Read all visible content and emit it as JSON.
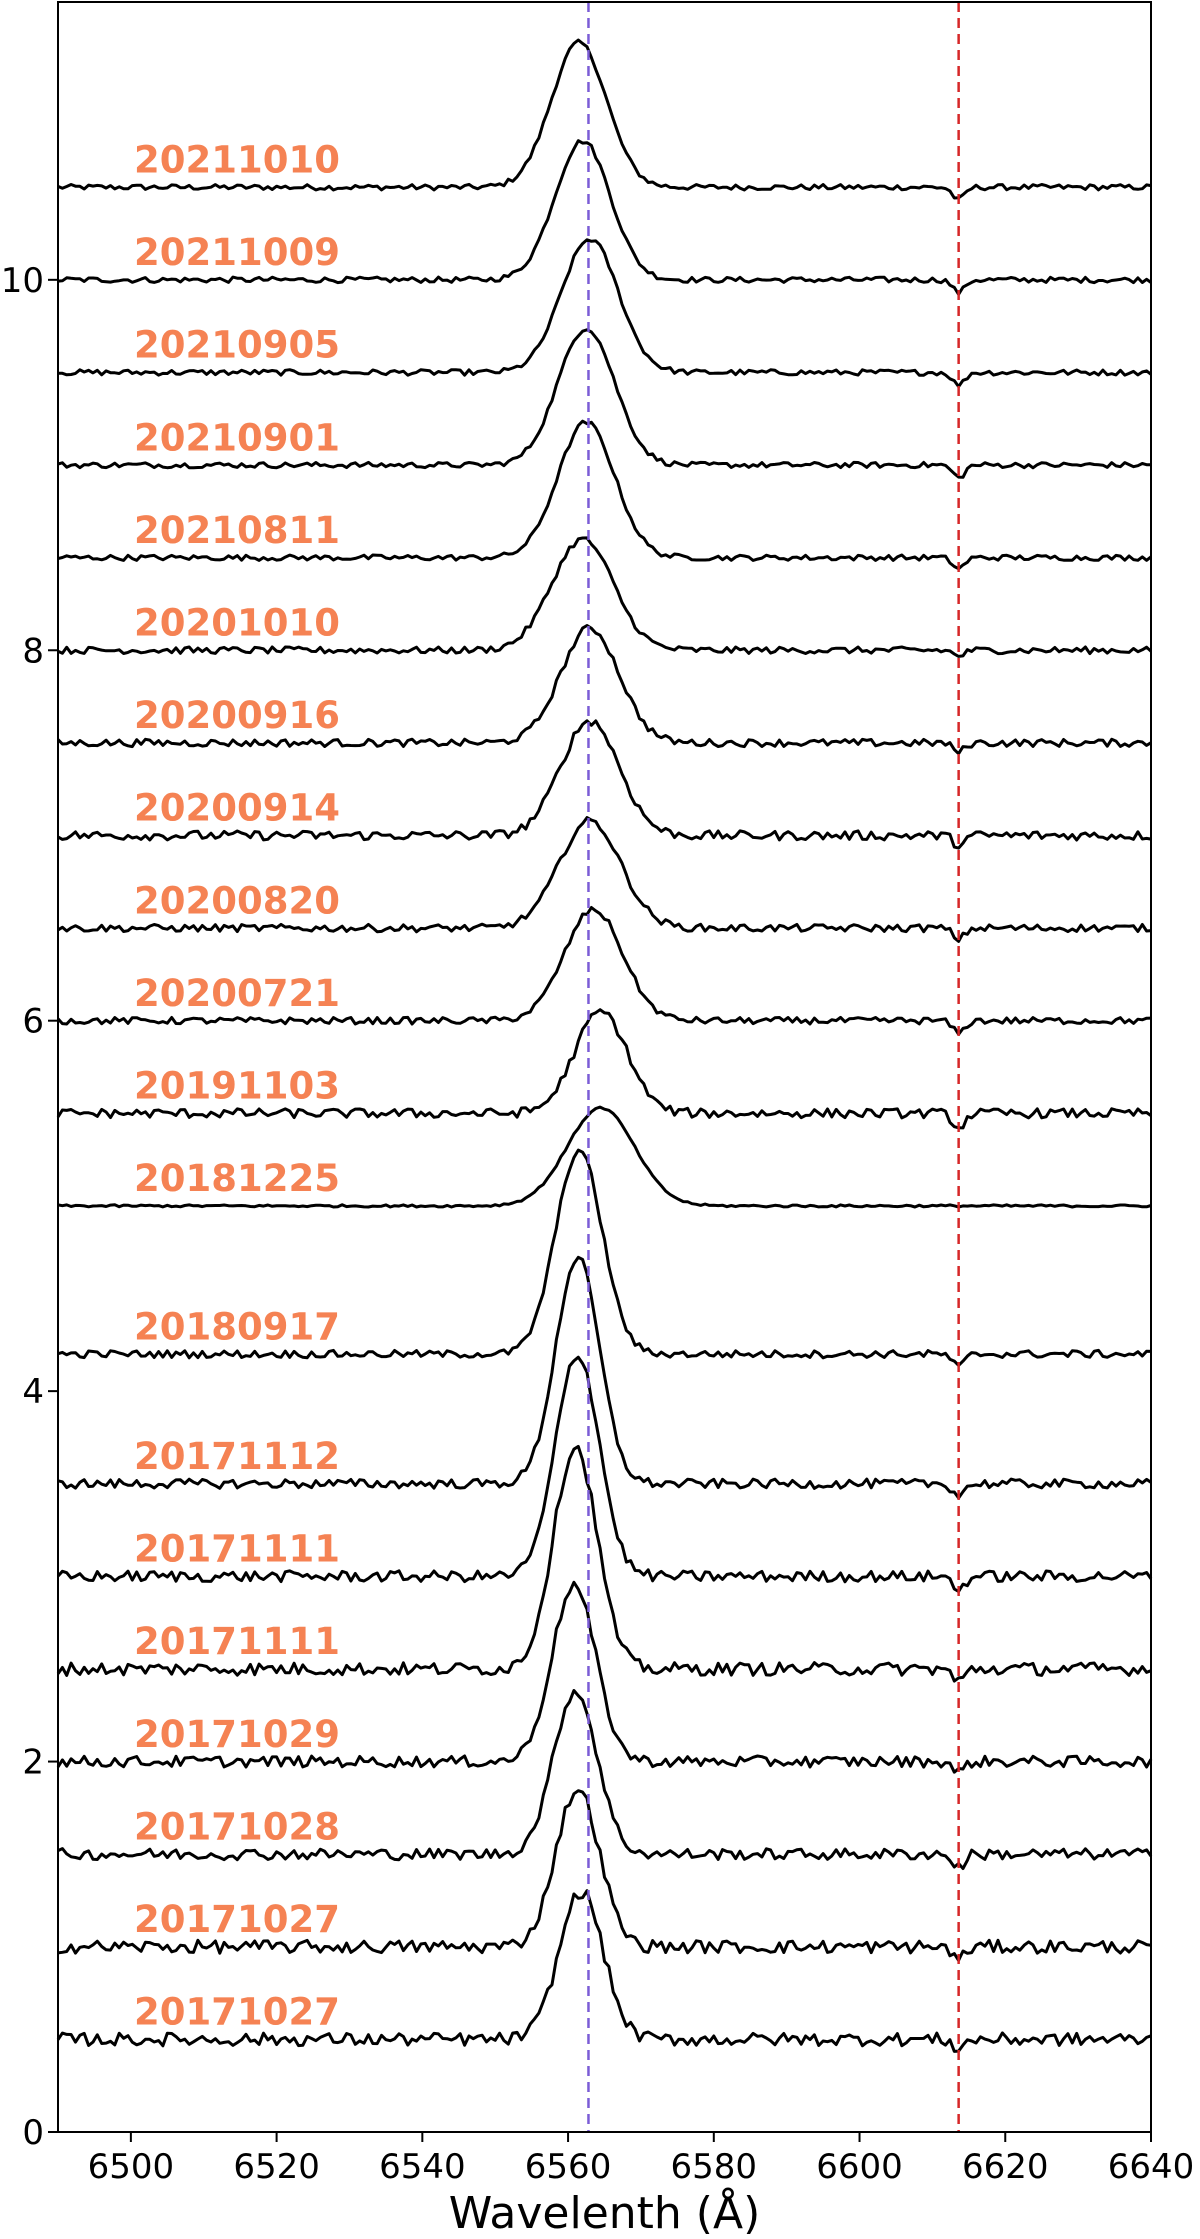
{
  "chart_data": {
    "type": "line",
    "xlabel": "Wavelenth (Å)",
    "ylabel": "",
    "xlim": [
      6490,
      6640
    ],
    "ylim": [
      0,
      11.5
    ],
    "xticks": [
      "6500",
      "6520",
      "6540",
      "6560",
      "6580",
      "6600",
      "6620",
      "6640"
    ],
    "yticks": [
      "0",
      "2",
      "4",
      "6",
      "8",
      "10"
    ],
    "reference_lines": [
      {
        "x": 6562.8,
        "color": "#7b5cd6"
      },
      {
        "x": 6613.6,
        "color": "#d62728"
      }
    ],
    "label_color": "#f58253",
    "line_color": "#000000",
    "series": [
      {
        "name": "20211010",
        "offset": 10.5,
        "center": 6561.5,
        "amp": 0.78,
        "width": 3.8,
        "abs": 0.07,
        "noise": 0.015,
        "label_y": 10.65
      },
      {
        "name": "20211009",
        "offset": 10.0,
        "center": 6562.0,
        "amp": 0.75,
        "width": 3.8,
        "abs": 0.07,
        "noise": 0.015,
        "label_y": 10.15
      },
      {
        "name": "20210905",
        "offset": 9.5,
        "center": 6563.0,
        "amp": 0.72,
        "width": 3.9,
        "abs": 0.07,
        "noise": 0.015,
        "label_y": 9.65
      },
      {
        "name": "20210901",
        "offset": 9.0,
        "center": 6562.5,
        "amp": 0.74,
        "width": 3.9,
        "abs": 0.07,
        "noise": 0.015,
        "label_y": 9.15
      },
      {
        "name": "20210811",
        "offset": 8.5,
        "center": 6562.5,
        "amp": 0.73,
        "width": 3.9,
        "abs": 0.06,
        "noise": 0.015,
        "label_y": 8.65
      },
      {
        "name": "20201010",
        "offset": 8.0,
        "center": 6562.0,
        "amp": 0.6,
        "width": 4.2,
        "abs": 0.03,
        "noise": 0.018,
        "label_y": 8.15
      },
      {
        "name": "20200916",
        "offset": 7.5,
        "center": 6563.0,
        "amp": 0.62,
        "width": 4.0,
        "abs": 0.05,
        "noise": 0.02,
        "label_y": 7.65
      },
      {
        "name": "20200914",
        "offset": 7.0,
        "center": 6563.0,
        "amp": 0.62,
        "width": 4.0,
        "abs": 0.05,
        "noise": 0.025,
        "label_y": 7.15
      },
      {
        "name": "20200820",
        "offset": 6.5,
        "center": 6563.0,
        "amp": 0.58,
        "width": 4.2,
        "abs": 0.06,
        "noise": 0.02,
        "label_y": 6.65
      },
      {
        "name": "20200721",
        "offset": 6.0,
        "center": 6563.5,
        "amp": 0.6,
        "width": 4.0,
        "abs": 0.07,
        "noise": 0.018,
        "label_y": 6.15
      },
      {
        "name": "20191103",
        "offset": 5.5,
        "center": 6564.5,
        "amp": 0.55,
        "width": 3.6,
        "abs": 0.08,
        "noise": 0.025,
        "label_y": 5.65
      },
      {
        "name": "20181225",
        "offset": 5.0,
        "center": 6564.5,
        "amp": 0.53,
        "width": 4.6,
        "abs": 0.0,
        "noise": 0.006,
        "label_y": 5.15
      },
      {
        "name": "20180917",
        "offset": 4.2,
        "center": 6561.5,
        "amp": 1.1,
        "width": 3.2,
        "abs": 0.07,
        "noise": 0.02,
        "label_y": 4.35
      },
      {
        "name": "20171112",
        "offset": 3.5,
        "center": 6561.3,
        "amp": 1.22,
        "width": 3.0,
        "abs": 0.06,
        "noise": 0.025,
        "label_y": 3.65
      },
      {
        "name": "20171111",
        "offset": 3.0,
        "center": 6561.3,
        "amp": 1.2,
        "width": 3.0,
        "abs": 0.07,
        "noise": 0.03,
        "label_y": 3.15
      },
      {
        "name": "20171111",
        "offset": 2.5,
        "center": 6561.0,
        "amp": 1.2,
        "width": 3.0,
        "abs": 0.07,
        "noise": 0.035,
        "label_y": 2.65
      },
      {
        "name": "20171029",
        "offset": 2.0,
        "center": 6560.8,
        "amp": 0.95,
        "width": 3.0,
        "abs": 0.06,
        "noise": 0.03,
        "label_y": 2.15
      },
      {
        "name": "20171028",
        "offset": 1.5,
        "center": 6561.0,
        "amp": 0.88,
        "width": 3.0,
        "abs": 0.07,
        "noise": 0.03,
        "label_y": 1.65
      },
      {
        "name": "20171027",
        "offset": 1.0,
        "center": 6561.3,
        "amp": 0.85,
        "width": 3.0,
        "abs": 0.07,
        "noise": 0.035,
        "label_y": 1.15
      },
      {
        "name": "20171027",
        "offset": 0.5,
        "center": 6561.8,
        "amp": 0.8,
        "width": 3.0,
        "abs": 0.05,
        "noise": 0.035,
        "label_y": 0.65
      }
    ]
  }
}
